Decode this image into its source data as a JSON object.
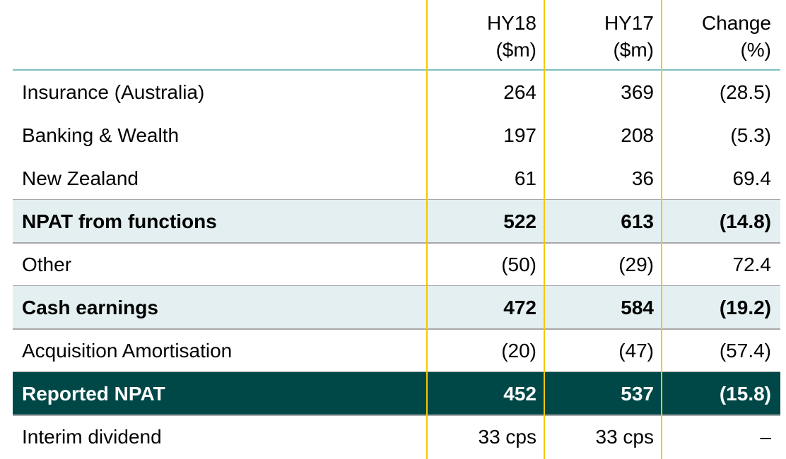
{
  "columns": {
    "hy18": {
      "line1": "HY18",
      "line2": "($m)"
    },
    "hy17": {
      "line1": "HY17",
      "line2": "($m)"
    },
    "change": {
      "line1": "Change",
      "line2": "(%)"
    }
  },
  "rows": [
    {
      "label": "Insurance (Australia)",
      "hy18": "264",
      "hy17": "369",
      "change": "(28.5)",
      "style": "normal"
    },
    {
      "label": "Banking & Wealth",
      "hy18": "197",
      "hy17": "208",
      "change": "(5.3)",
      "style": "normal"
    },
    {
      "label": "New Zealand",
      "hy18": "61",
      "hy17": "36",
      "change": "69.4",
      "style": "normal"
    },
    {
      "label": "NPAT from functions",
      "hy18": "522",
      "hy17": "613",
      "change": "(14.8)",
      "style": "subtotal"
    },
    {
      "label": "Other",
      "hy18": "(50)",
      "hy17": "(29)",
      "change": "72.4",
      "style": "normal"
    },
    {
      "label": "Cash earnings",
      "hy18": "472",
      "hy17": "584",
      "change": "(19.2)",
      "style": "subtotal"
    },
    {
      "label": "Acquisition Amortisation",
      "hy18": "(20)",
      "hy17": "(47)",
      "change": "(57.4)",
      "style": "normal"
    },
    {
      "label": "Reported NPAT",
      "hy18": "452",
      "hy17": "537",
      "change": "(15.8)",
      "style": "total"
    },
    {
      "label": "Interim dividend",
      "hy18": "33 cps",
      "hy17": "33 cps",
      "change": "–",
      "style": "normal"
    }
  ],
  "colors": {
    "subtotal_background": "#e3eff0",
    "total_background": "#004848",
    "column_rule": "#f5c800",
    "header_rule": "#7fbfbf",
    "row_rule": "#a8a8a8"
  }
}
